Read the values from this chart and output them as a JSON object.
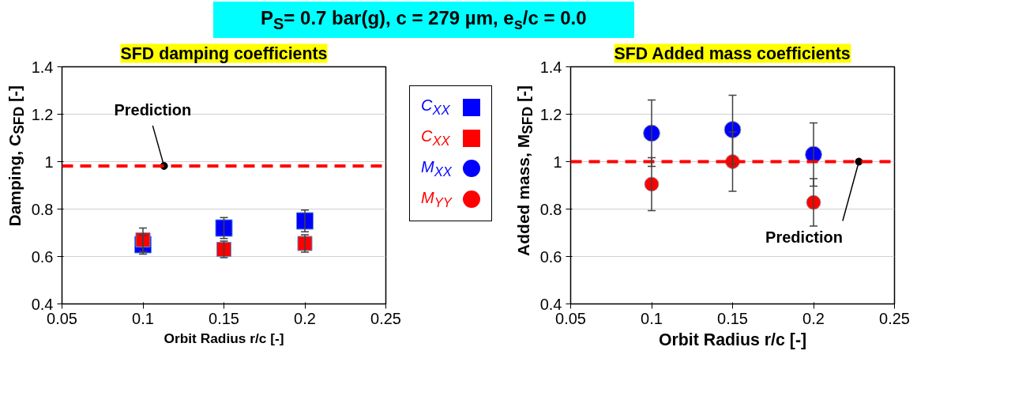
{
  "chart_data": [
    {
      "type": "scatter",
      "title": "P$_{S}$= 0.7 bar(g), c = 279 µm, e$_{s}$/c = 0.0",
      "subtitle": "SFD damping coefficients",
      "xlabel": "Orbit Radius r/c [-]",
      "ylabel": "Damping, C$_{SFD}$ [-]",
      "x": [
        0.1,
        0.15,
        0.2
      ],
      "series": [
        {
          "name": "C$_{XX}$",
          "color": "#0000ff",
          "marker": "square",
          "values": [
            0.65,
            0.72,
            0.75
          ],
          "errors": [
            0.04,
            0.044,
            0.046
          ]
        },
        {
          "name": "C$_{XX}$",
          "color": "#ff0000",
          "marker": "square",
          "values": [
            0.67,
            0.63,
            0.655
          ],
          "errors": [
            0.05,
            0.035,
            0.037
          ]
        }
      ],
      "ref_lines": [
        {
          "axis": "y",
          "value": 0.982,
          "color": "#ff0000",
          "line_style": "dashed"
        }
      ],
      "annotations": [
        {
          "text": "Prediction",
          "x": 0.113,
          "y": 0.982
        }
      ],
      "xlim": [
        0.05,
        0.25
      ],
      "xticks": [
        0.05,
        0.1,
        0.15,
        0.2,
        0.25
      ],
      "ylim": [
        0.4,
        1.4
      ],
      "yticks": [
        0.4,
        0.6,
        0.8,
        1,
        1.2,
        1.4
      ],
      "grid": "y",
      "legend": "right"
    },
    {
      "type": "scatter",
      "subtitle": "SFD Added mass coefficients",
      "xlabel": "Orbit Radius r/c [-]",
      "ylabel": "Added mass, M$_{SFD}$ [-]",
      "x": [
        0.1,
        0.15,
        0.2
      ],
      "series": [
        {
          "name": "M$_{XX}$",
          "color": "#0000ff",
          "marker": "circle",
          "values": [
            1.12,
            1.135,
            1.03
          ],
          "errors": [
            0.14,
            0.145,
            0.133
          ]
        },
        {
          "name": "M$_{YY}$",
          "color": "#ff0000",
          "marker": "circle",
          "values": [
            0.905,
            1.0,
            0.828
          ],
          "errors": [
            0.112,
            0.125,
            0.1
          ]
        }
      ],
      "ref_lines": [
        {
          "axis": "y",
          "value": 1.0,
          "color": "#ff0000",
          "line_style": "dashed"
        }
      ],
      "annotations": [
        {
          "text": "Prediction",
          "x": 0.228,
          "y": 1.0
        }
      ],
      "xlim": [
        0.05,
        0.25
      ],
      "xticks": [
        0.05,
        0.1,
        0.15,
        0.2,
        0.25
      ],
      "ylim": [
        0.4,
        1.4
      ],
      "yticks": [
        0.4,
        0.6,
        0.8,
        1,
        1.2,
        1.4
      ],
      "grid": "y",
      "legend": "left"
    }
  ]
}
